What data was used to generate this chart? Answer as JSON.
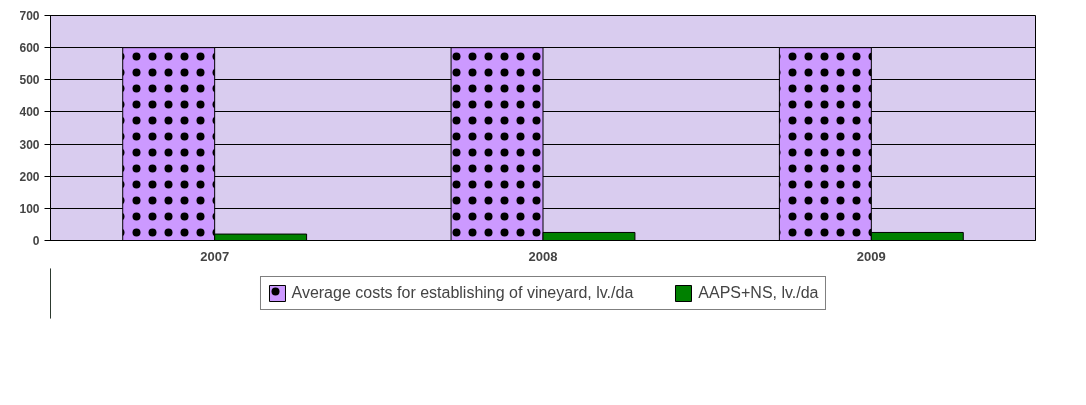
{
  "chart_data": {
    "type": "bar",
    "categories": [
      "2007",
      "2008",
      "2009"
    ],
    "series": [
      {
        "name": "Average costs for establishing of vineyard, lv./da",
        "color": "#cc99ff",
        "values": [
          600,
          600,
          600
        ]
      },
      {
        "name": "AAPS+NS, lv./da",
        "color": "#008000",
        "values": [
          20,
          25,
          25
        ]
      }
    ],
    "ylim": [
      0,
      700
    ],
    "yticks": [
      0,
      100,
      200,
      300,
      400,
      500,
      600,
      700
    ],
    "grid": "y",
    "legend": "bottom"
  }
}
